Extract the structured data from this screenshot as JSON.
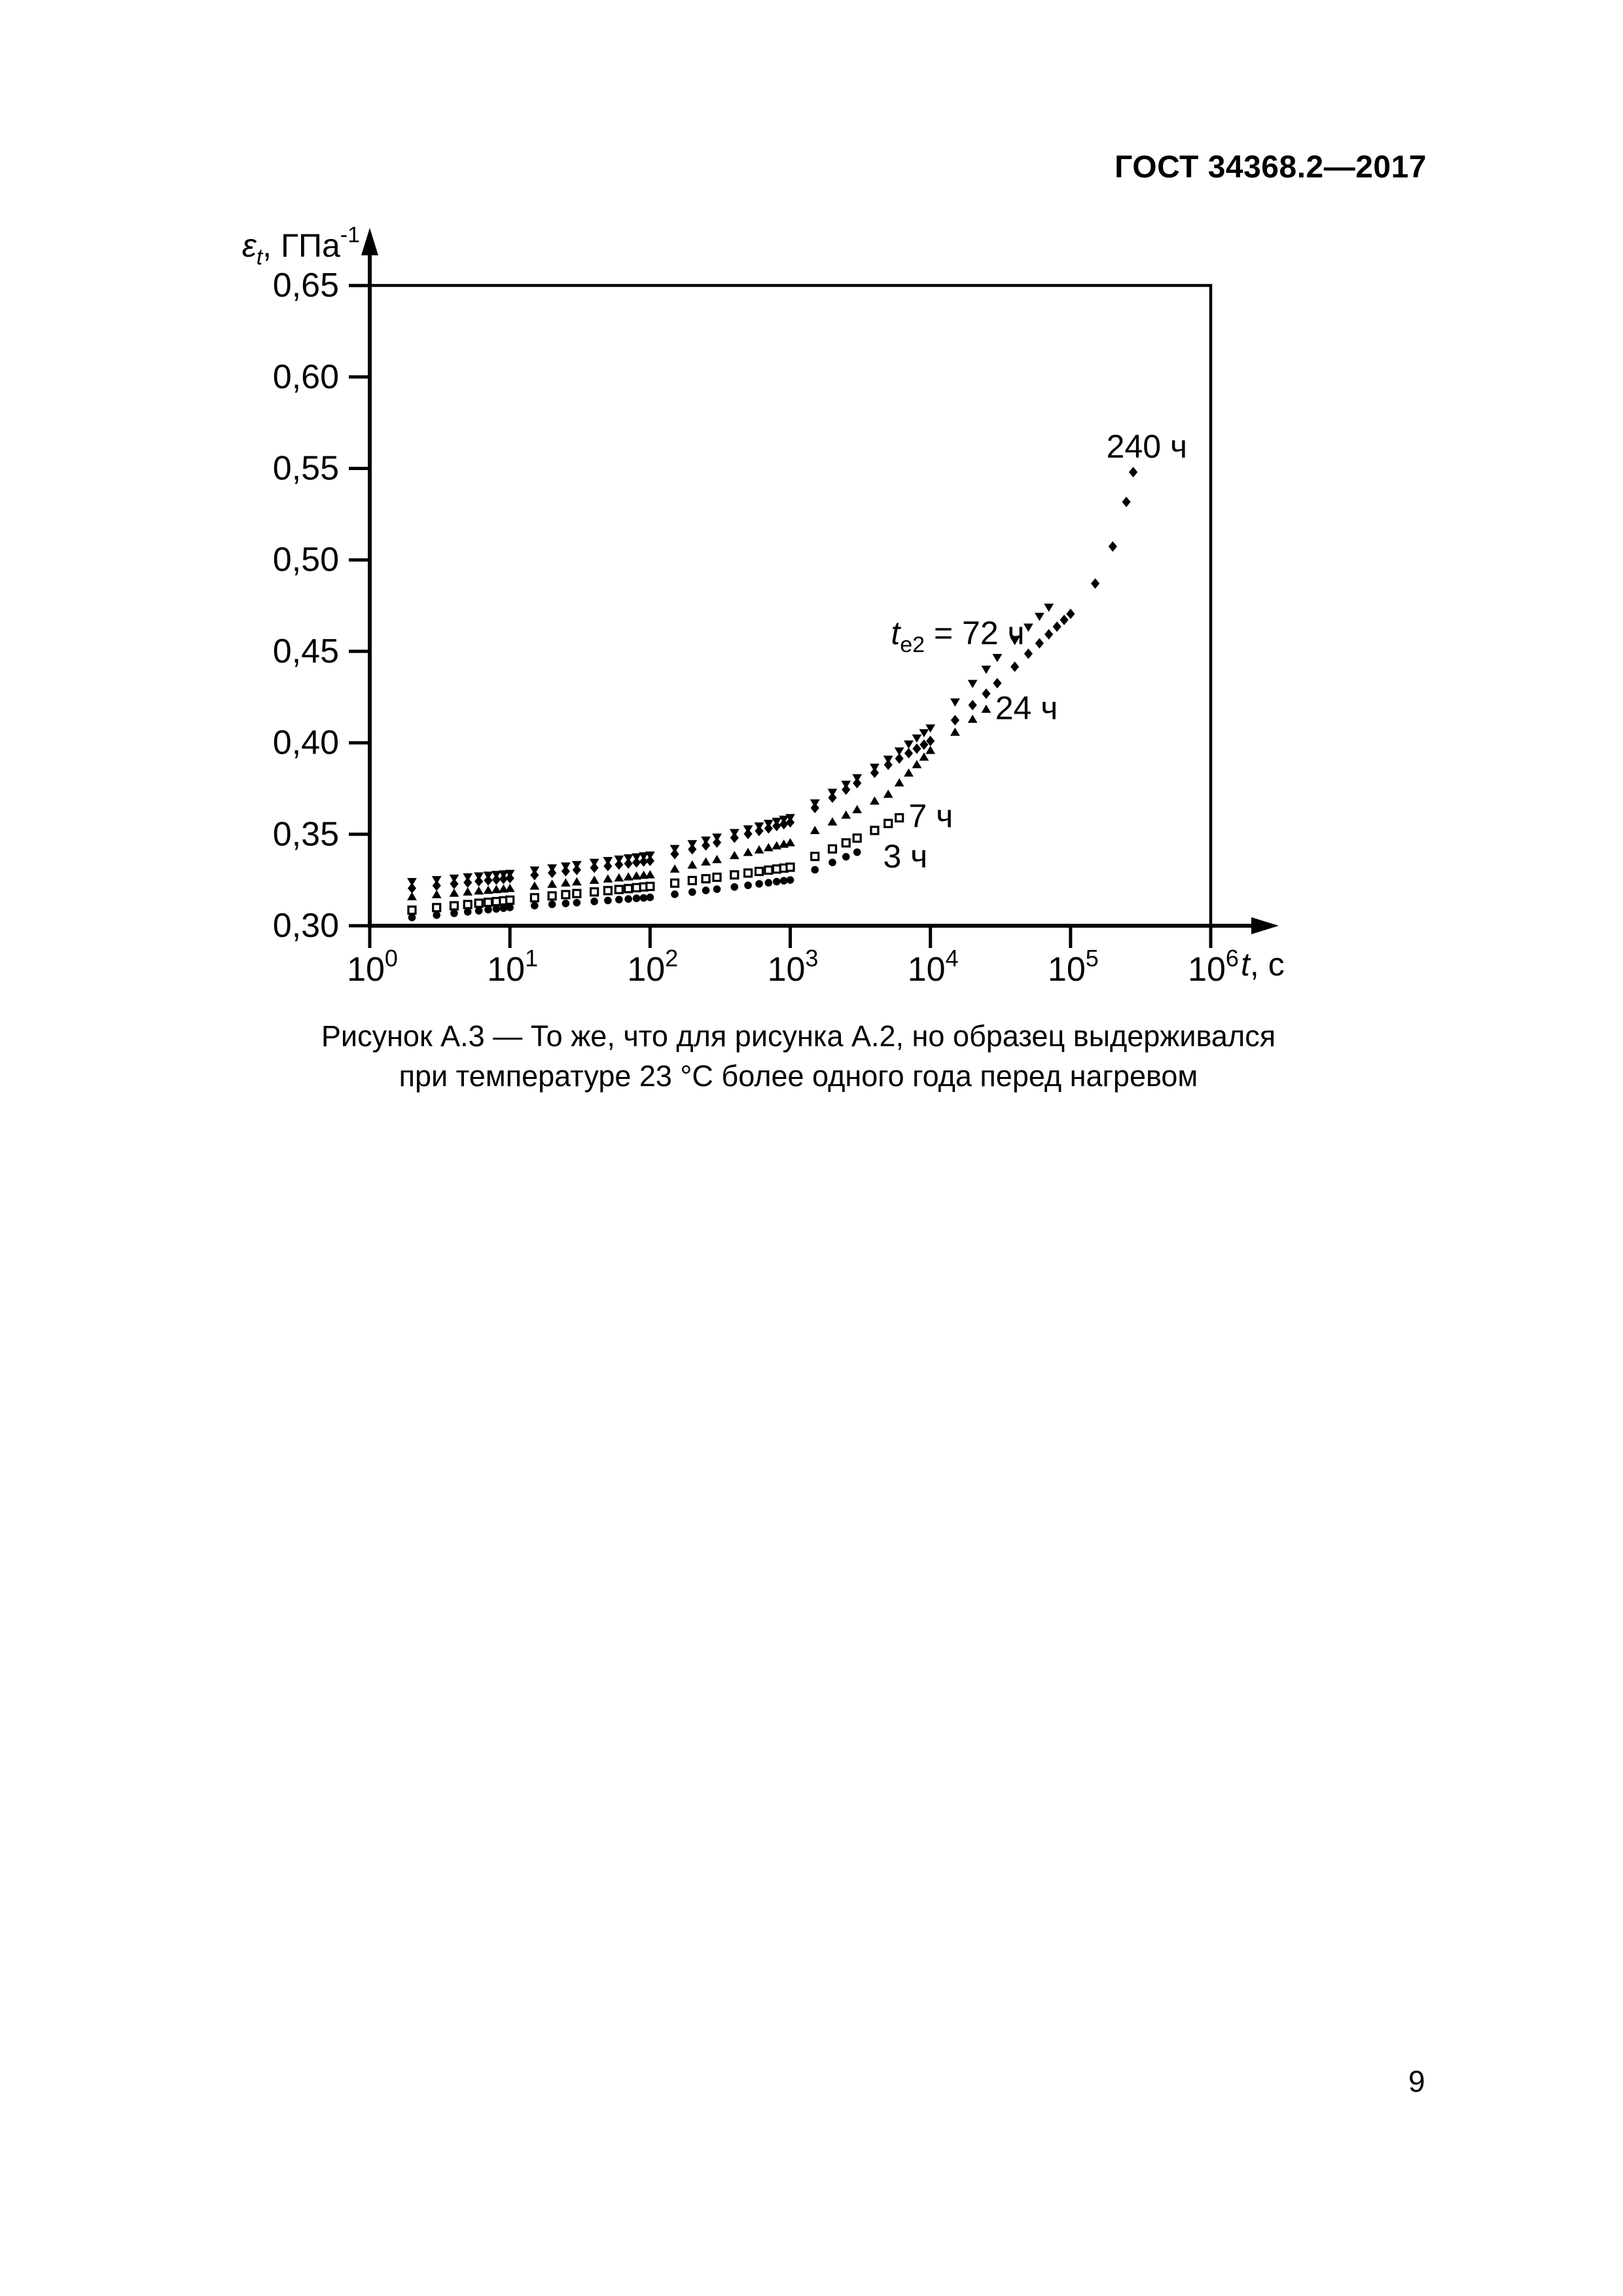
{
  "page": {
    "header": "ГОСТ 34368.2—2017",
    "page_number": "9"
  },
  "figure": {
    "caption_line1": "Рисунок А.3 — То же, что для рисунка А.2, но образец выдерживался",
    "caption_line2": "при температуре 23 °С более одного года перед нагревом"
  },
  "chart_data": {
    "type": "scatter",
    "x_scale": "log",
    "x_range_exponents": [
      0,
      6
    ],
    "ylim": [
      0.3,
      0.65
    ],
    "grid": false,
    "legend": "inline-annotations",
    "xlabel_runs": [
      {
        "text": "t",
        "italic": true
      },
      {
        "text": ", с"
      }
    ],
    "ylabel_runs": [
      {
        "text": "ε",
        "italic": true
      },
      {
        "text": "t",
        "italic": true,
        "script": "sub"
      },
      {
        "text": ", ГПа"
      },
      {
        "text": "-1",
        "script": "sup"
      }
    ],
    "x_tick_exponents": [
      0,
      1,
      2,
      3,
      4,
      5,
      6
    ],
    "x_tick_base": "10",
    "y_ticks": [
      {
        "value": 0.3,
        "label": "0,30"
      },
      {
        "value": 0.35,
        "label": "0,35"
      },
      {
        "value": 0.4,
        "label": "0,40"
      },
      {
        "value": 0.45,
        "label": "0,45"
      },
      {
        "value": 0.5,
        "label": "0,50"
      },
      {
        "value": 0.55,
        "label": "0,55"
      },
      {
        "value": 0.6,
        "label": "0,60"
      },
      {
        "value": 0.65,
        "label": "0,65"
      }
    ],
    "series": [
      {
        "name": "3 ч",
        "marker": "circle",
        "points": [
          [
            2,
            0.3045
          ],
          [
            3,
            0.3058
          ],
          [
            4,
            0.3068
          ],
          [
            5,
            0.3076
          ],
          [
            6,
            0.3082
          ],
          [
            7,
            0.3088
          ],
          [
            8,
            0.3092
          ],
          [
            9,
            0.3096
          ],
          [
            10,
            0.31
          ],
          [
            15,
            0.311
          ],
          [
            20,
            0.3117
          ],
          [
            25,
            0.3122
          ],
          [
            30,
            0.3126
          ],
          [
            40,
            0.3133
          ],
          [
            50,
            0.3138
          ],
          [
            60,
            0.3143
          ],
          [
            70,
            0.3146
          ],
          [
            80,
            0.315
          ],
          [
            90,
            0.3152
          ],
          [
            100,
            0.3155
          ],
          [
            150,
            0.3172
          ],
          [
            200,
            0.3184
          ],
          [
            250,
            0.3193
          ],
          [
            300,
            0.32
          ],
          [
            400,
            0.3212
          ],
          [
            500,
            0.3221
          ],
          [
            600,
            0.3229
          ],
          [
            700,
            0.3235
          ],
          [
            800,
            0.3241
          ],
          [
            900,
            0.3246
          ],
          [
            1000,
            0.325
          ],
          [
            1500,
            0.3306
          ],
          [
            2000,
            0.3346
          ],
          [
            2500,
            0.3377
          ],
          [
            3000,
            0.3402
          ]
        ]
      },
      {
        "name": "7 ч",
        "marker": "square-open",
        "points": [
          [
            2,
            0.3085
          ],
          [
            3,
            0.3099
          ],
          [
            4,
            0.3109
          ],
          [
            5,
            0.3116
          ],
          [
            6,
            0.3123
          ],
          [
            7,
            0.3128
          ],
          [
            8,
            0.3132
          ],
          [
            9,
            0.3136
          ],
          [
            10,
            0.314
          ],
          [
            15,
            0.3153
          ],
          [
            20,
            0.3163
          ],
          [
            25,
            0.317
          ],
          [
            30,
            0.3176
          ],
          [
            40,
            0.3185
          ],
          [
            50,
            0.3192
          ],
          [
            60,
            0.3198
          ],
          [
            70,
            0.3203
          ],
          [
            80,
            0.3208
          ],
          [
            90,
            0.3212
          ],
          [
            100,
            0.3215
          ],
          [
            150,
            0.3233
          ],
          [
            200,
            0.3247
          ],
          [
            250,
            0.3257
          ],
          [
            300,
            0.3265
          ],
          [
            400,
            0.3278
          ],
          [
            500,
            0.3288
          ],
          [
            600,
            0.3297
          ],
          [
            700,
            0.3304
          ],
          [
            800,
            0.331
          ],
          [
            900,
            0.3315
          ],
          [
            1000,
            0.332
          ],
          [
            1500,
            0.3379
          ],
          [
            2000,
            0.342
          ],
          [
            2500,
            0.3453
          ],
          [
            3000,
            0.3479
          ],
          [
            4000,
            0.3521
          ],
          [
            5000,
            0.3559
          ],
          [
            6000,
            0.359
          ]
        ]
      },
      {
        "name": "24 ч",
        "marker": "triangle-up",
        "points": [
          [
            2,
            0.316
          ],
          [
            3,
            0.3171
          ],
          [
            4,
            0.3179
          ],
          [
            5,
            0.3186
          ],
          [
            6,
            0.3191
          ],
          [
            7,
            0.3195
          ],
          [
            8,
            0.3199
          ],
          [
            9,
            0.3202
          ],
          [
            10,
            0.3205
          ],
          [
            15,
            0.3218
          ],
          [
            20,
            0.3228
          ],
          [
            25,
            0.3235
          ],
          [
            30,
            0.3241
          ],
          [
            40,
            0.325
          ],
          [
            50,
            0.3257
          ],
          [
            60,
            0.3263
          ],
          [
            70,
            0.3268
          ],
          [
            80,
            0.3273
          ],
          [
            90,
            0.3277
          ],
          [
            100,
            0.328
          ],
          [
            150,
            0.3311
          ],
          [
            200,
            0.3333
          ],
          [
            250,
            0.335
          ],
          [
            300,
            0.3363
          ],
          [
            400,
            0.3385
          ],
          [
            500,
            0.3402
          ],
          [
            600,
            0.3416
          ],
          [
            700,
            0.3428
          ],
          [
            800,
            0.3438
          ],
          [
            900,
            0.3447
          ],
          [
            1000,
            0.3455
          ],
          [
            1500,
            0.3522
          ],
          [
            2000,
            0.3569
          ],
          [
            2500,
            0.3606
          ],
          [
            3000,
            0.3636
          ],
          [
            4000,
            0.3683
          ],
          [
            5000,
            0.372
          ],
          [
            6000,
            0.3782
          ],
          [
            7000,
            0.3836
          ],
          [
            8000,
            0.3882
          ],
          [
            9000,
            0.3923
          ],
          [
            10000,
            0.396
          ],
          [
            15000,
            0.4059
          ],
          [
            20000,
            0.413
          ],
          [
            25000,
            0.4185
          ]
        ]
      },
      {
        "name": "72 ч",
        "marker": "triangle-down",
        "points": [
          [
            2,
            0.324
          ],
          [
            3,
            0.3251
          ],
          [
            4,
            0.3259
          ],
          [
            5,
            0.3266
          ],
          [
            6,
            0.3271
          ],
          [
            7,
            0.3275
          ],
          [
            8,
            0.3279
          ],
          [
            9,
            0.3282
          ],
          [
            10,
            0.3285
          ],
          [
            15,
            0.3303
          ],
          [
            20,
            0.3315
          ],
          [
            25,
            0.3325
          ],
          [
            30,
            0.3333
          ],
          [
            40,
            0.3345
          ],
          [
            50,
            0.3355
          ],
          [
            60,
            0.3363
          ],
          [
            70,
            0.337
          ],
          [
            80,
            0.3375
          ],
          [
            90,
            0.3381
          ],
          [
            100,
            0.3385
          ],
          [
            150,
            0.3421
          ],
          [
            200,
            0.3447
          ],
          [
            250,
            0.3467
          ],
          [
            300,
            0.3483
          ],
          [
            400,
            0.3508
          ],
          [
            500,
            0.3528
          ],
          [
            600,
            0.3544
          ],
          [
            700,
            0.3558
          ],
          [
            800,
            0.357
          ],
          [
            900,
            0.3581
          ],
          [
            1000,
            0.359
          ],
          [
            1500,
            0.367
          ],
          [
            2000,
            0.3728
          ],
          [
            2500,
            0.3772
          ],
          [
            3000,
            0.3808
          ],
          [
            4000,
            0.3865
          ],
          [
            5000,
            0.3909
          ],
          [
            6000,
            0.3954
          ],
          [
            7000,
            0.3992
          ],
          [
            8000,
            0.4025
          ],
          [
            9000,
            0.4054
          ],
          [
            10000,
            0.408
          ],
          [
            15000,
            0.4222
          ],
          [
            20000,
            0.4323
          ],
          [
            25000,
            0.4401
          ],
          [
            30000,
            0.4465
          ],
          [
            40000,
            0.4558
          ],
          [
            50000,
            0.4631
          ],
          [
            60000,
            0.469
          ],
          [
            70000,
            0.474
          ]
        ]
      },
      {
        "name": "240 ч",
        "marker": "diamond",
        "points": [
          [
            2,
            0.3205
          ],
          [
            3,
            0.3219
          ],
          [
            4,
            0.3229
          ],
          [
            5,
            0.3236
          ],
          [
            6,
            0.3243
          ],
          [
            7,
            0.3248
          ],
          [
            8,
            0.3252
          ],
          [
            9,
            0.3256
          ],
          [
            10,
            0.326
          ],
          [
            15,
            0.3277
          ],
          [
            20,
            0.3289
          ],
          [
            25,
            0.3298
          ],
          [
            30,
            0.3305
          ],
          [
            40,
            0.3317
          ],
          [
            50,
            0.3326
          ],
          [
            60,
            0.3334
          ],
          [
            70,
            0.334
          ],
          [
            80,
            0.3346
          ],
          [
            90,
            0.3351
          ],
          [
            100,
            0.3355
          ],
          [
            150,
            0.3392
          ],
          [
            200,
            0.3418
          ],
          [
            250,
            0.3439
          ],
          [
            300,
            0.3455
          ],
          [
            400,
            0.3481
          ],
          [
            500,
            0.3502
          ],
          [
            600,
            0.3518
          ],
          [
            700,
            0.3532
          ],
          [
            800,
            0.3545
          ],
          [
            900,
            0.3555
          ],
          [
            1000,
            0.3565
          ],
          [
            1500,
            0.3644
          ],
          [
            2000,
            0.37
          ],
          [
            2500,
            0.3744
          ],
          [
            3000,
            0.378
          ],
          [
            4000,
            0.3836
          ],
          [
            5000,
            0.388
          ],
          [
            6000,
            0.3914
          ],
          [
            7000,
            0.3943
          ],
          [
            8000,
            0.3968
          ],
          [
            9000,
            0.399
          ],
          [
            10000,
            0.401
          ],
          [
            15000,
            0.4124
          ],
          [
            20000,
            0.4206
          ],
          [
            25000,
            0.4269
          ],
          [
            30000,
            0.4326
          ],
          [
            40000,
            0.4416
          ],
          [
            50000,
            0.4487
          ],
          [
            60000,
            0.4544
          ],
          [
            70000,
            0.4593
          ],
          [
            80000,
            0.4635
          ],
          [
            90000,
            0.4672
          ],
          [
            100000,
            0.4705
          ],
          [
            150000,
            0.4871
          ],
          [
            200000,
            0.5073
          ],
          [
            250000,
            0.5317
          ],
          [
            280000,
            0.548
          ]
        ]
      }
    ],
    "annotations": [
      {
        "name": "label-240h",
        "runs": [
          {
            "text": "240 ч"
          }
        ],
        "t": 350000,
        "eps": 0.562,
        "anchor": "middle"
      },
      {
        "name": "label-72h",
        "runs": [
          {
            "text": "t",
            "italic": true
          },
          {
            "text": "e2",
            "script": "sub"
          },
          {
            "text": " = 72 ч"
          }
        ],
        "t": 47000,
        "eps": 0.46,
        "anchor": "end"
      },
      {
        "name": "label-24h",
        "runs": [
          {
            "text": "24 ч"
          }
        ],
        "t": 29000,
        "eps": 0.419,
        "anchor": "start"
      },
      {
        "name": "label-7h",
        "runs": [
          {
            "text": "7 ч"
          }
        ],
        "t": 7000,
        "eps": 0.36,
        "anchor": "start"
      },
      {
        "name": "label-3h",
        "runs": [
          {
            "text": "3 ч"
          }
        ],
        "t": 4600,
        "eps": 0.338,
        "anchor": "start"
      }
    ]
  }
}
